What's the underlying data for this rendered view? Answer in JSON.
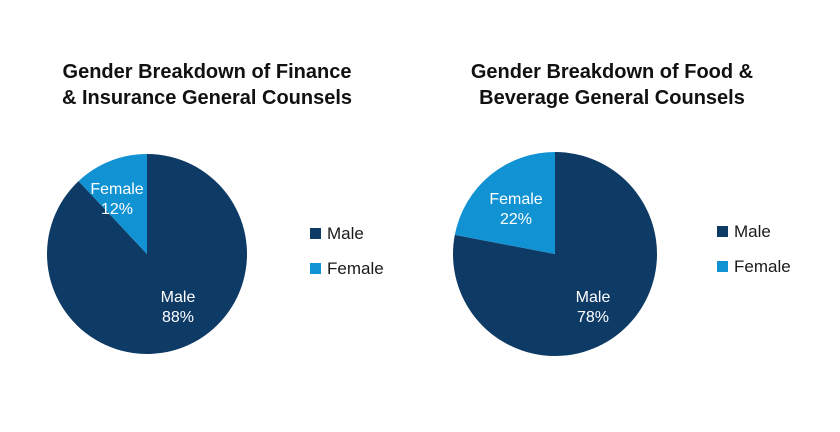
{
  "chart_data": [
    {
      "type": "pie",
      "title_lines": [
        "Gender Breakdown of Finance",
        "& Insurance General Counsels"
      ],
      "categories": [
        "Male",
        "Female"
      ],
      "values": [
        88,
        12
      ],
      "unit": "%",
      "legend": {
        "position": "right",
        "entries": [
          "Male",
          "Female"
        ]
      },
      "colors": {
        "Male": "#0e3a66",
        "Female": "#1192d2"
      }
    },
    {
      "type": "pie",
      "title_lines": [
        "Gender Breakdown of Food &",
        "Beverage General Counsels"
      ],
      "categories": [
        "Male",
        "Female"
      ],
      "values": [
        78,
        22
      ],
      "unit": "%",
      "legend": {
        "position": "right",
        "entries": [
          "Male",
          "Female"
        ]
      },
      "colors": {
        "Male": "#0e3a66",
        "Female": "#1192d2"
      }
    }
  ]
}
